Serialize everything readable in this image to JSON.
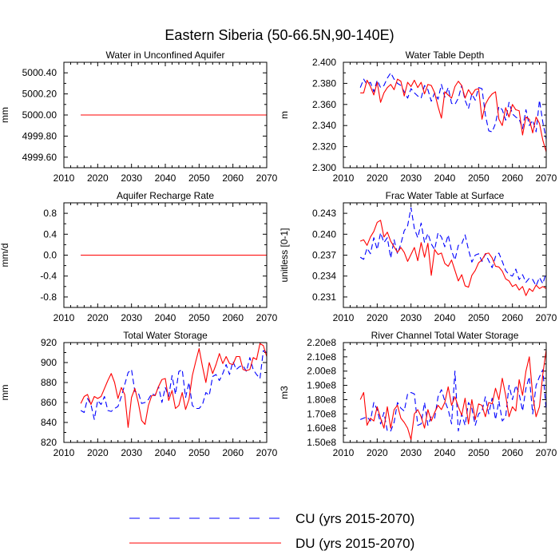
{
  "title": "Eastern Siberia (50-66.5N,90-140E)",
  "colors": {
    "cu": "#0000ff",
    "du": "#ff0000",
    "axis": "#000000"
  },
  "legend": [
    {
      "key": "cu",
      "label": "CU (yrs 2015-2070)",
      "style": "dashed"
    },
    {
      "key": "du",
      "label": "DU (yrs 2015-2070)",
      "style": "solid"
    }
  ],
  "chart_data": [
    {
      "type": "line",
      "title": "Water in Unconfined Aquifer",
      "ylabel": "mm",
      "xlim": [
        2010,
        2070
      ],
      "ylim": [
        4999.5,
        5000.5
      ],
      "xticks": [
        2010,
        2020,
        2030,
        2040,
        2050,
        2060,
        2070
      ],
      "yticks": [
        4999.6,
        4999.8,
        5000.0,
        5000.2,
        5000.4
      ],
      "ytick_labels": [
        "4999.60",
        "4999.80",
        "5000.00",
        "5000.20",
        "5000.40"
      ],
      "x": [
        2015,
        2070
      ],
      "series": [
        {
          "name": "CU (yrs 2015-2070)",
          "values": [
            5000.0,
            5000.0
          ]
        },
        {
          "name": "DU (yrs 2015-2070)",
          "values": [
            5000.0,
            5000.0
          ]
        }
      ]
    },
    {
      "type": "line",
      "title": "Water Table Depth",
      "ylabel": "m",
      "xlim": [
        2010,
        2070
      ],
      "ylim": [
        2.3,
        2.4
      ],
      "xticks": [
        2010,
        2020,
        2030,
        2040,
        2050,
        2060,
        2070
      ],
      "yticks": [
        2.3,
        2.32,
        2.34,
        2.36,
        2.38,
        2.4
      ],
      "ytick_labels": [
        "2.300",
        "2.320",
        "2.340",
        "2.360",
        "2.380",
        "2.400"
      ],
      "x_start": 2015,
      "series": [
        {
          "name": "CU (yrs 2015-2070)",
          "values": [
            2.376,
            2.384,
            2.379,
            2.381,
            2.372,
            2.383,
            2.376,
            2.378,
            2.385,
            2.39,
            2.384,
            2.38,
            2.378,
            2.372,
            2.366,
            2.375,
            2.371,
            2.368,
            2.366,
            2.378,
            2.374,
            2.363,
            2.371,
            2.365,
            2.379,
            2.367,
            2.376,
            2.361,
            2.36,
            2.366,
            2.378,
            2.364,
            2.356,
            2.37,
            2.364,
            2.376,
            2.375,
            2.35,
            2.335,
            2.334,
            2.342,
            2.358,
            2.355,
            2.345,
            2.362,
            2.351,
            2.348,
            2.346,
            2.337,
            2.355,
            2.34,
            2.345,
            2.334,
            2.364,
            2.343,
            2.327
          ]
        },
        {
          "name": "DU (yrs 2015-2070)",
          "values": [
            2.371,
            2.371,
            2.383,
            2.377,
            2.369,
            2.381,
            2.362,
            2.371,
            2.376,
            2.379,
            2.374,
            2.384,
            2.382,
            2.368,
            2.381,
            2.377,
            2.383,
            2.376,
            2.381,
            2.37,
            2.379,
            2.378,
            2.371,
            2.358,
            2.347,
            2.372,
            2.369,
            2.366,
            2.377,
            2.382,
            2.378,
            2.366,
            2.374,
            2.369,
            2.374,
            2.375,
            2.346,
            2.36,
            2.366,
            2.37,
            2.372,
            2.346,
            2.34,
            2.357,
            2.348,
            2.36,
            2.355,
            2.354,
            2.331,
            2.348,
            2.346,
            2.333,
            2.348,
            2.342,
            2.326,
            2.315
          ]
        }
      ]
    },
    {
      "type": "line",
      "title": "Aquifer Recharge Rate",
      "ylabel": "mm/d",
      "xlim": [
        2010,
        2070
      ],
      "ylim": [
        -1.0,
        1.0
      ],
      "xticks": [
        2010,
        2020,
        2030,
        2040,
        2050,
        2060,
        2070
      ],
      "yticks": [
        -0.8,
        -0.4,
        0.0,
        0.4,
        0.8
      ],
      "ytick_labels": [
        "-0.8",
        "-0.4",
        "0.0",
        "0.4",
        "0.8"
      ],
      "x": [
        2015,
        2070
      ],
      "series": [
        {
          "name": "CU (yrs 2015-2070)",
          "values": [
            0.0,
            0.0
          ]
        },
        {
          "name": "DU (yrs 2015-2070)",
          "values": [
            0.0,
            0.0
          ]
        }
      ]
    },
    {
      "type": "line",
      "title": "Frac Water Table at Surface",
      "ylabel": "unitless [0-1]",
      "xlim": [
        2010,
        2070
      ],
      "ylim": [
        0.2295,
        0.2445
      ],
      "xticks": [
        2010,
        2020,
        2030,
        2040,
        2050,
        2060,
        2070
      ],
      "yticks": [
        0.231,
        0.234,
        0.237,
        0.24,
        0.243
      ],
      "ytick_labels": [
        "0.231",
        "0.234",
        "0.237",
        "0.240",
        "0.243"
      ],
      "x_start": 2015,
      "series": [
        {
          "name": "CU (yrs 2015-2070)",
          "values": [
            0.2367,
            0.2364,
            0.238,
            0.2372,
            0.2395,
            0.2378,
            0.2402,
            0.2388,
            0.2395,
            0.2366,
            0.2392,
            0.2372,
            0.2386,
            0.2405,
            0.2412,
            0.2438,
            0.2408,
            0.2395,
            0.2416,
            0.2388,
            0.2401,
            0.2386,
            0.2378,
            0.2402,
            0.2396,
            0.2382,
            0.2399,
            0.2376,
            0.2363,
            0.2384,
            0.2386,
            0.2399,
            0.2378,
            0.236,
            0.237,
            0.2372,
            0.2361,
            0.2372,
            0.2362,
            0.2352,
            0.2368,
            0.2373,
            0.2361,
            0.2348,
            0.2342,
            0.234,
            0.235,
            0.2335,
            0.2342,
            0.2331,
            0.2337,
            0.2335,
            0.2326,
            0.2338,
            0.2329,
            0.2345
          ]
        },
        {
          "name": "DU (yrs 2015-2070)",
          "values": [
            0.239,
            0.2392,
            0.2384,
            0.2396,
            0.2404,
            0.2417,
            0.242,
            0.2396,
            0.2403,
            0.239,
            0.2382,
            0.2374,
            0.2381,
            0.2374,
            0.2361,
            0.2371,
            0.2381,
            0.2362,
            0.2388,
            0.2367,
            0.2387,
            0.2341,
            0.2378,
            0.2371,
            0.2373,
            0.2358,
            0.2354,
            0.2363,
            0.2348,
            0.2333,
            0.2342,
            0.2326,
            0.2324,
            0.2341,
            0.2348,
            0.2359,
            0.2363,
            0.2372,
            0.2373,
            0.2366,
            0.2354,
            0.2353,
            0.2347,
            0.2336,
            0.2333,
            0.2325,
            0.2328,
            0.232,
            0.2325,
            0.2312,
            0.2322,
            0.2318,
            0.2327,
            0.2322,
            0.2325,
            0.2322
          ]
        }
      ]
    },
    {
      "type": "line",
      "title": "Total Water Storage",
      "ylabel": "mm",
      "xlim": [
        2010,
        2070
      ],
      "ylim": [
        820,
        920
      ],
      "xticks": [
        2010,
        2020,
        2030,
        2040,
        2050,
        2060,
        2070
      ],
      "yticks": [
        820,
        840,
        860,
        880,
        900,
        920
      ],
      "ytick_labels": [
        "820",
        "840",
        "860",
        "880",
        "900",
        "920"
      ],
      "x_start": 2015,
      "series": [
        {
          "name": "CU (yrs 2015-2070)",
          "values": [
            852,
            850,
            864,
            858,
            843,
            862,
            858,
            866,
            852,
            851,
            854,
            856,
            866,
            878,
            890,
            893,
            871,
            870,
            859,
            860,
            863,
            869,
            867,
            876,
            860,
            875,
            866,
            887,
            868,
            891,
            893,
            865,
            880,
            857,
            854,
            854,
            858,
            870,
            867,
            886,
            888,
            882,
            889,
            898,
            888,
            901,
            893,
            896,
            897,
            891,
            905,
            893,
            888,
            884,
            912,
            910
          ]
        },
        {
          "name": "DU (yrs 2015-2070)",
          "values": [
            859,
            866,
            868,
            858,
            866,
            864,
            866,
            874,
            882,
            889,
            880,
            864,
            875,
            868,
            835,
            865,
            874,
            860,
            842,
            838,
            857,
            867,
            867,
            876,
            883,
            884,
            862,
            872,
            854,
            857,
            870,
            853,
            863,
            887,
            901,
            914,
            896,
            880,
            900,
            889,
            898,
            909,
            899,
            906,
            899,
            898,
            906,
            906,
            893,
            892,
            893,
            905,
            903,
            919,
            917,
            906
          ]
        }
      ]
    },
    {
      "type": "line",
      "title": "River Channel Total Water Storage",
      "ylabel": "m3",
      "xlim": [
        2010,
        2070
      ],
      "ylim": [
        150000000,
        220000000
      ],
      "xticks": [
        2010,
        2020,
        2030,
        2040,
        2050,
        2060,
        2070
      ],
      "yticks": [
        150000000,
        160000000,
        170000000,
        180000000,
        190000000,
        200000000,
        210000000,
        220000000
      ],
      "ytick_labels": [
        "1.50e8",
        "1.60e8",
        "1.70e8",
        "1.80e8",
        "1.90e8",
        "2.00e8",
        "2.10e8",
        "2.20e8"
      ],
      "x_start": 2015,
      "series": [
        {
          "name": "CU (yrs 2015-2070)",
          "values": [
            166000000,
            167000000,
            168000000,
            165000000,
            178000000,
            173000000,
            163000000,
            171000000,
            158000000,
            158000000,
            164000000,
            178000000,
            174000000,
            172000000,
            184000000,
            185000000,
            184000000,
            162000000,
            163000000,
            178000000,
            162000000,
            168000000,
            167000000,
            182000000,
            187000000,
            179000000,
            173000000,
            163000000,
            200000000,
            158000000,
            170000000,
            162000000,
            178000000,
            174000000,
            162000000,
            170000000,
            172000000,
            182000000,
            170000000,
            181000000,
            166000000,
            179000000,
            165000000,
            168000000,
            190000000,
            180000000,
            190000000,
            184000000,
            172000000,
            188000000,
            196000000,
            170000000,
            190000000,
            196000000,
            201000000,
            172000000
          ]
        },
        {
          "name": "DU (yrs 2015-2070)",
          "values": [
            180000000,
            185000000,
            162000000,
            167000000,
            165000000,
            175000000,
            167000000,
            160000000,
            175000000,
            160000000,
            173000000,
            176000000,
            167000000,
            164000000,
            160000000,
            152000000,
            170000000,
            173000000,
            168000000,
            160000000,
            173000000,
            165000000,
            171000000,
            176000000,
            173000000,
            178000000,
            189000000,
            176000000,
            182000000,
            175000000,
            169000000,
            181000000,
            163000000,
            180000000,
            166000000,
            177000000,
            176000000,
            168000000,
            178000000,
            177000000,
            188000000,
            180000000,
            195000000,
            183000000,
            168000000,
            175000000,
            172000000,
            194000000,
            183000000,
            200000000,
            210000000,
            183000000,
            168000000,
            175000000,
            198000000,
            215000000
          ]
        }
      ]
    }
  ]
}
